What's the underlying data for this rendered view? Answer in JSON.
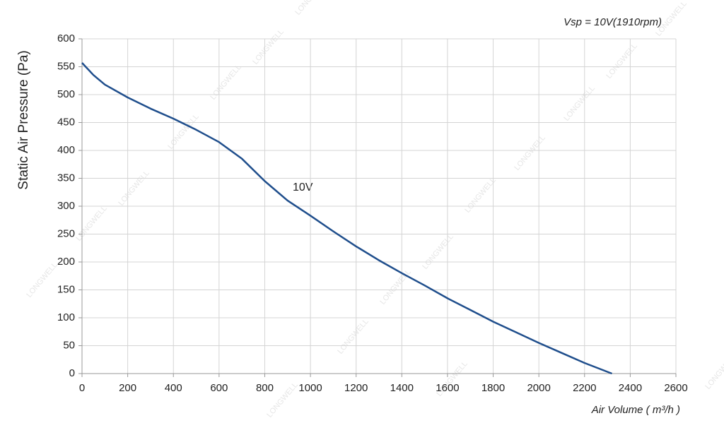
{
  "chart_data": {
    "type": "line",
    "title": "Vsp = 10V(1910rpm)",
    "x_label": "Air Volume ( m³/h )",
    "y_label": "Static Air Pressure  (Pa)",
    "watermark": "LONGWELL",
    "annotation": "10V",
    "x": [
      0,
      50,
      100,
      200,
      300,
      400,
      500,
      600,
      700,
      800,
      900,
      1000,
      1100,
      1200,
      1300,
      1400,
      1500,
      1600,
      1700,
      1800,
      1900,
      2000,
      2100,
      2200,
      2320
    ],
    "series": [
      {
        "name": "10V",
        "color": "#1f4e8c",
        "values": [
          557,
          535,
          518,
          495,
          475,
          457,
          437,
          415,
          385,
          345,
          310,
          283,
          255,
          228,
          203,
          180,
          158,
          135,
          114,
          93,
          74,
          55,
          37,
          19,
          0
        ]
      }
    ],
    "xlim": [
      0,
      2600
    ],
    "xticks": [
      0,
      200,
      400,
      600,
      800,
      1000,
      1200,
      1400,
      1600,
      1800,
      2000,
      2200,
      2400,
      2600
    ],
    "ylim": [
      0,
      600
    ],
    "yticks": [
      0,
      50,
      100,
      150,
      200,
      250,
      300,
      350,
      400,
      450,
      500,
      550,
      600
    ],
    "grid": true
  }
}
